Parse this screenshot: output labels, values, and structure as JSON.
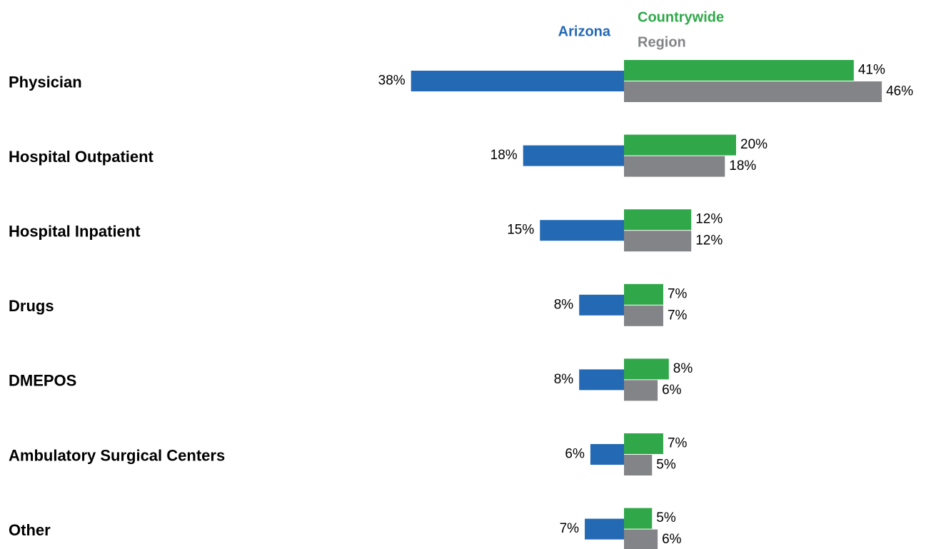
{
  "chart_data": {
    "type": "bar",
    "categories": [
      "Physician",
      "Hospital Outpatient",
      "Hospital Inpatient",
      "Drugs",
      "DMEPOS",
      "Ambulatory Surgical Centers",
      "Other"
    ],
    "series": [
      {
        "name": "Arizona",
        "color": "#2369b3",
        "values": [
          38,
          18,
          15,
          8,
          8,
          6,
          7
        ],
        "value_labels": [
          "38%",
          "18%",
          "15%",
          "8%",
          "8%",
          "6%",
          "7%"
        ]
      },
      {
        "name": "Countrywide",
        "color": "#30a84a",
        "values": [
          41,
          20,
          12,
          7,
          8,
          7,
          5
        ],
        "value_labels": [
          "41%",
          "20%",
          "12%",
          "7%",
          "8%",
          "7%",
          "5%"
        ]
      },
      {
        "name": "Region",
        "color": "#838487",
        "values": [
          46,
          18,
          12,
          7,
          6,
          5,
          6
        ],
        "value_labels": [
          "46%",
          "18%",
          "12%",
          "7%",
          "6%",
          "5%",
          "6%"
        ]
      }
    ]
  }
}
